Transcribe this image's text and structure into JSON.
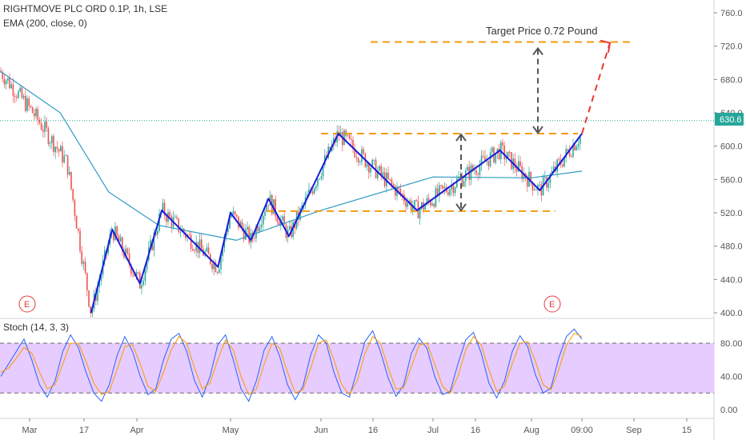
{
  "legend": {
    "title": "RIGHTMOVE PLC ORD 0.1P, 1h, LSE",
    "ema": "EMA (200, close, 0)",
    "stoch": "Stoch (14, 3, 3)"
  },
  "annotation": "Target Price 0.72 Pound",
  "price_tag": "630.6",
  "event_marker": "E",
  "colors": {
    "candle_up": "#26a69a",
    "candle_down": "#ef5350",
    "ema": "#2e9bc4",
    "pattern": "#1a1adc",
    "levels": "#f39c12",
    "projection": "#e53935",
    "stoch_k": "#2962ff",
    "stoch_d": "#ff9800",
    "stoch_band": "#e6ccff",
    "price_tag": "#26a69a"
  },
  "chart_data": [
    {
      "type": "candlestick",
      "title": "RIGHTMOVE PLC ORD 0.1P, 1h, LSE",
      "x_ticks": [
        "Mar",
        "17",
        "Apr",
        "May",
        "Jun",
        "16",
        "Jul",
        "16",
        "Aug",
        "09:00",
        "Sep",
        "15"
      ],
      "y_ticks": [
        400,
        440,
        480,
        520,
        560,
        600,
        640,
        680,
        720,
        760
      ],
      "ylim": [
        395,
        770
      ],
      "last_price": 630.6,
      "price_path": [
        {
          "date": "Feb 24",
          "price": 690
        },
        {
          "date": "Mar 2",
          "price": 640
        },
        {
          "date": "Mar 12",
          "price": 580
        },
        {
          "date": "Mar 19",
          "price": 400
        },
        {
          "date": "Mar 25",
          "price": 500
        },
        {
          "date": "Apr 2",
          "price": 435
        },
        {
          "date": "Apr 9",
          "price": 523
        },
        {
          "date": "Apr 27",
          "price": 455
        },
        {
          "date": "May 1",
          "price": 520
        },
        {
          "date": "May 8",
          "price": 487
        },
        {
          "date": "May 14",
          "price": 537
        },
        {
          "date": "May 21",
          "price": 492
        },
        {
          "date": "Jun 6",
          "price": 615
        },
        {
          "date": "Jun 27",
          "price": 523
        },
        {
          "date": "Jul 23",
          "price": 595
        },
        {
          "date": "Aug 2",
          "price": 547
        },
        {
          "date": "Aug 7",
          "price": 615
        }
      ],
      "ema_200": [
        {
          "date": "Feb 24",
          "value": 690
        },
        {
          "date": "Mar 10",
          "value": 640
        },
        {
          "date": "Mar 24",
          "value": 545
        },
        {
          "date": "Apr 8",
          "value": 505
        },
        {
          "date": "May 3",
          "value": 487
        },
        {
          "date": "Jun 1",
          "value": 523
        },
        {
          "date": "Jul 1",
          "value": 563
        },
        {
          "date": "Aug 1",
          "value": 562
        },
        {
          "date": "Aug 7",
          "value": 570
        }
      ],
      "levels": {
        "resistance": 615,
        "support": 522,
        "target": 725
      },
      "target_price": 0.72,
      "target_unit": "Pound",
      "projection": [
        {
          "date": "Aug 7",
          "price": 615
        },
        {
          "date": "Aug 22",
          "price": 720
        }
      ],
      "event_markers": [
        "Mar 11",
        "Aug 6"
      ]
    },
    {
      "type": "line",
      "title": "Stoch (14, 3, 3)",
      "y_ticks": [
        0,
        40,
        80
      ],
      "band": [
        20,
        80
      ],
      "ylim": [
        -5,
        105
      ],
      "series": [
        {
          "values": [
            40,
            55,
            70,
            85,
            60,
            30,
            15,
            35,
            70,
            90,
            75,
            45,
            20,
            10,
            30,
            65,
            88,
            70,
            40,
            18,
            25,
            60,
            85,
            92,
            70,
            35,
            15,
            40,
            78,
            90,
            60,
            25,
            10,
            35,
            72,
            88,
            64,
            30,
            12,
            28,
            66,
            90,
            80,
            45,
            20,
            15,
            48,
            82,
            95,
            70,
            38,
            16,
            30,
            68,
            86,
            74,
            40,
            18,
            22,
            55,
            84,
            93,
            68,
            32,
            14,
            34,
            70,
            89,
            76,
            42,
            20,
            26,
            62,
            88,
            97,
            85
          ]
        },
        {
          "values": [
            45,
            50,
            62,
            75,
            68,
            45,
            25,
            30,
            55,
            80,
            80,
            58,
            32,
            18,
            22,
            48,
            76,
            78,
            55,
            28,
            22,
            45,
            72,
            88,
            80,
            50,
            25,
            32,
            60,
            84,
            72,
            40,
            18,
            25,
            55,
            80,
            74,
            45,
            20,
            24,
            50,
            80,
            84,
            60,
            30,
            18,
            35,
            68,
            88,
            80,
            50,
            25,
            26,
            52,
            78,
            80,
            55,
            28,
            20,
            40,
            72,
            88,
            78,
            48,
            22,
            28,
            55,
            80,
            82,
            58,
            30,
            24,
            48,
            78,
            92,
            88
          ]
        }
      ]
    }
  ]
}
